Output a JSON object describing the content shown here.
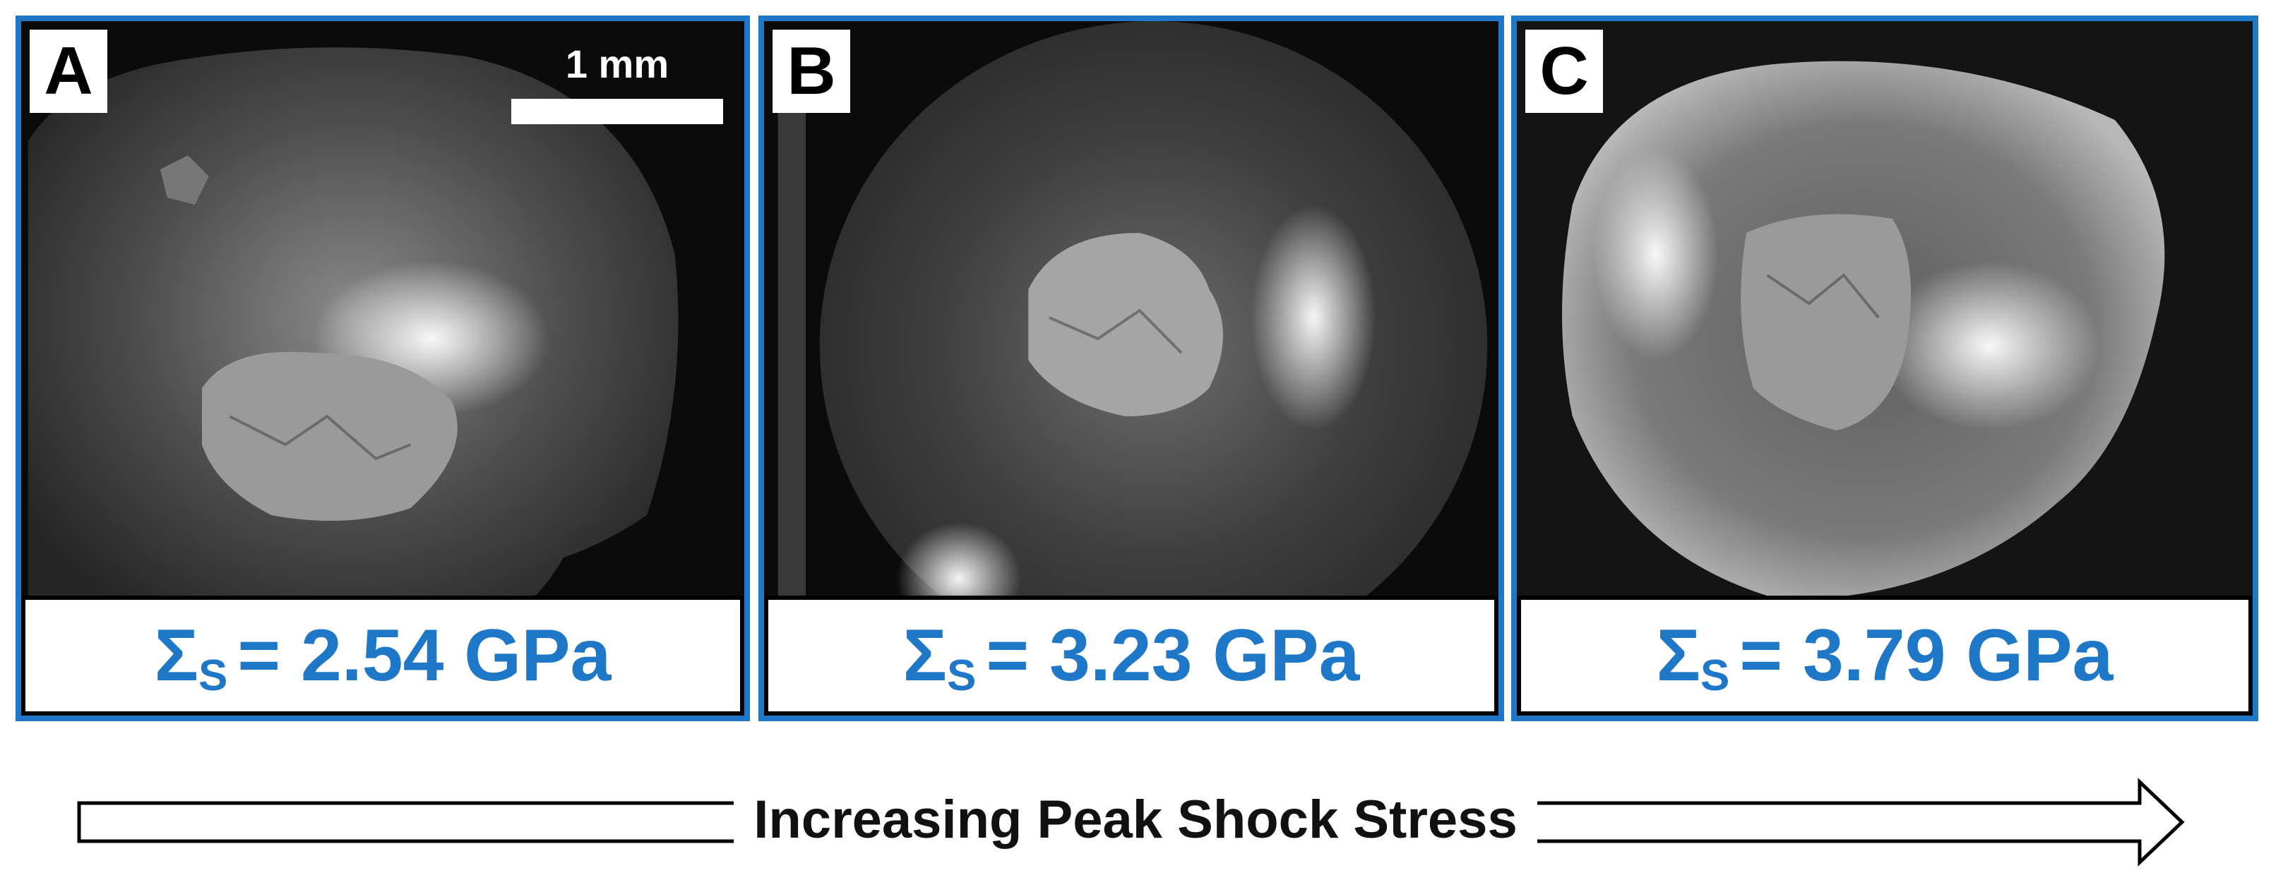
{
  "panels": [
    {
      "letter": "A",
      "stress_symbol": "Σ",
      "stress_subscript": "S",
      "stress_value": "= 2.54 GPa"
    },
    {
      "letter": "B",
      "stress_symbol": "Σ",
      "stress_subscript": "S",
      "stress_value": "= 3.23 GPa"
    },
    {
      "letter": "C",
      "stress_symbol": "Σ",
      "stress_subscript": "S",
      "stress_value": "= 3.79 GPa"
    }
  ],
  "scale_bar": {
    "label": "1 mm"
  },
  "arrow": {
    "label": "Increasing Peak Shock Stress"
  },
  "colors": {
    "accent": "#1f77c8",
    "background": "#0d0d0d",
    "text": "#000000"
  }
}
